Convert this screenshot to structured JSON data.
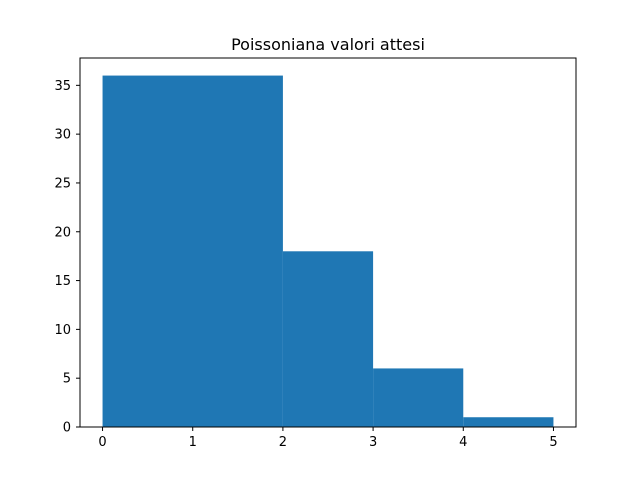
{
  "chart_data": {
    "type": "bar",
    "title": "Poissoniana valori attesi",
    "xlabel": "",
    "ylabel": "",
    "bins": [
      {
        "x0": 0,
        "x1": 2,
        "value": 36
      },
      {
        "x0": 2,
        "x1": 3,
        "value": 18
      },
      {
        "x0": 3,
        "x1": 4,
        "value": 6
      },
      {
        "x0": 4,
        "x1": 5,
        "value": 1
      }
    ],
    "xlim": [
      -0.25,
      5.25
    ],
    "ylim": [
      0,
      37.8
    ],
    "x_ticks": [
      0,
      1,
      2,
      3,
      4,
      5
    ],
    "y_ticks": [
      0,
      5,
      10,
      15,
      20,
      25,
      30,
      35
    ],
    "x_tick_labels": [
      "0",
      "1",
      "2",
      "3",
      "4",
      "5"
    ],
    "y_tick_labels": [
      "0",
      "5",
      "10",
      "15",
      "20",
      "25",
      "30",
      "35"
    ],
    "grid": false,
    "bar_color": "#1f77b4",
    "axis_color": "#000000"
  }
}
